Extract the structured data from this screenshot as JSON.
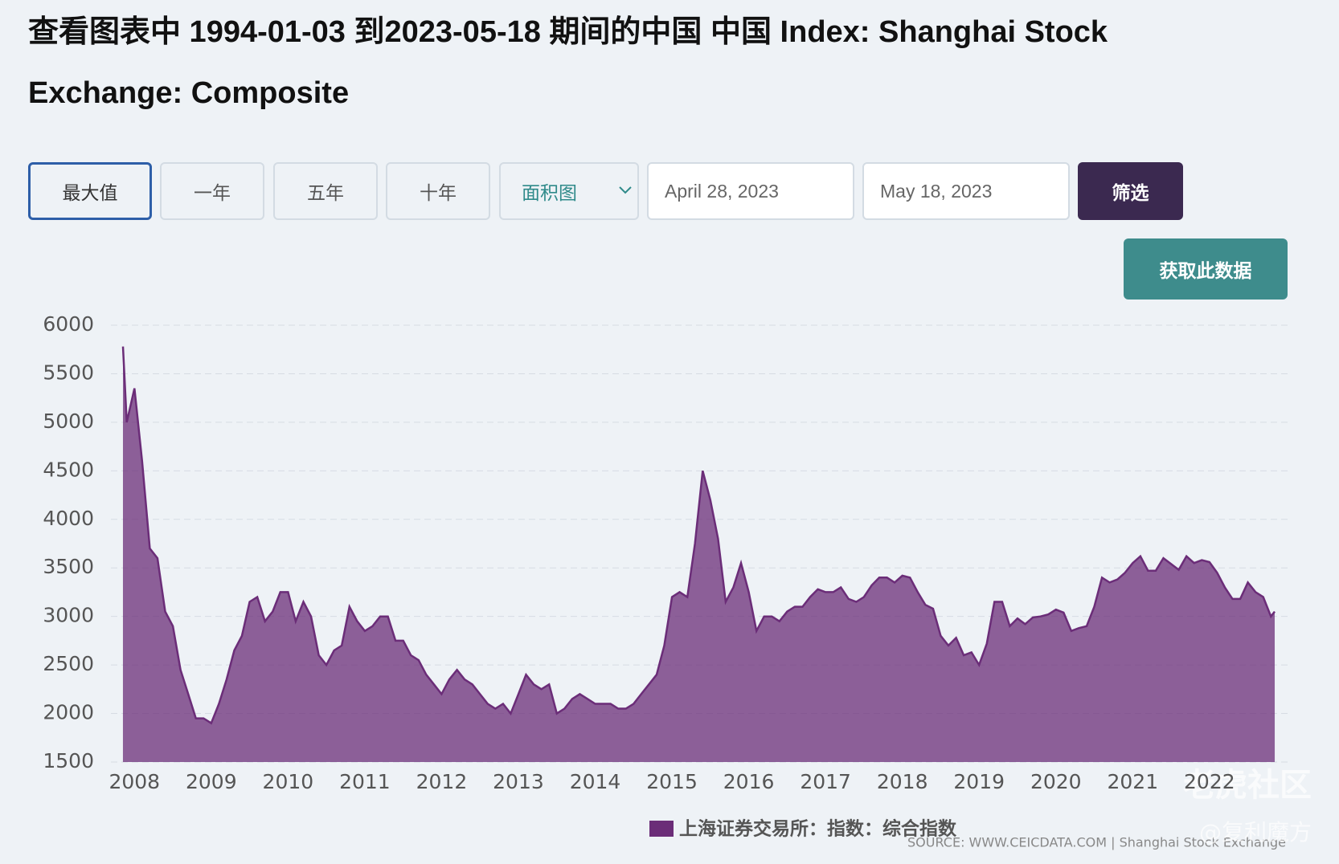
{
  "header": {
    "title": "查看图表中 1994-01-03 到2023-05-18 期间的中国 中国 Index: Shanghai Stock Exchange: Composite"
  },
  "controls": {
    "ranges": [
      "最大值",
      "一年",
      "五年",
      "十年"
    ],
    "chart_type": "面积图",
    "date_from": "April 28, 2023",
    "date_to": "May 18, 2023",
    "filter": "筛选",
    "download": "获取此数据"
  },
  "chart_data": {
    "type": "area",
    "x": [
      2007.85,
      2007.9,
      2008,
      2008.1,
      2008.2,
      2008.3,
      2008.4,
      2008.5,
      2008.6,
      2008.7,
      2008.8,
      2008.9,
      2009,
      2009.1,
      2009.2,
      2009.3,
      2009.4,
      2009.5,
      2009.6,
      2009.7,
      2009.8,
      2009.9,
      2010,
      2010.1,
      2010.2,
      2010.3,
      2010.4,
      2010.5,
      2010.6,
      2010.7,
      2010.8,
      2010.9,
      2011,
      2011.1,
      2011.2,
      2011.3,
      2011.4,
      2011.5,
      2011.6,
      2011.7,
      2011.8,
      2011.9,
      2012,
      2012.1,
      2012.2,
      2012.3,
      2012.4,
      2012.5,
      2012.6,
      2012.7,
      2012.8,
      2012.9,
      2013,
      2013.1,
      2013.2,
      2013.3,
      2013.4,
      2013.5,
      2013.6,
      2013.7,
      2013.8,
      2013.9,
      2014,
      2014.1,
      2014.2,
      2014.3,
      2014.4,
      2014.5,
      2014.6,
      2014.7,
      2014.8,
      2014.9,
      2015,
      2015.1,
      2015.2,
      2015.3,
      2015.4,
      2015.5,
      2015.6,
      2015.7,
      2015.8,
      2015.9,
      2016,
      2016.1,
      2016.2,
      2016.3,
      2016.4,
      2016.5,
      2016.6,
      2016.7,
      2016.8,
      2016.9,
      2017,
      2017.1,
      2017.2,
      2017.3,
      2017.4,
      2017.5,
      2017.6,
      2017.7,
      2017.8,
      2017.9,
      2018,
      2018.1,
      2018.2,
      2018.3,
      2018.4,
      2018.5,
      2018.6,
      2018.7,
      2018.8,
      2018.9,
      2019,
      2019.1,
      2019.2,
      2019.3,
      2019.4,
      2019.5,
      2019.6,
      2019.7,
      2019.8,
      2019.9,
      2020,
      2020.1,
      2020.2,
      2020.3,
      2020.4,
      2020.5,
      2020.6,
      2020.7,
      2020.8,
      2020.9,
      2021,
      2021.1,
      2021.2,
      2021.3,
      2021.4,
      2021.5,
      2021.6,
      2021.7,
      2021.8,
      2021.9,
      2022,
      2022.1,
      2022.2,
      2022.3,
      2022.4,
      2022.5,
      2022.6,
      2022.7,
      2022.8,
      2022.85
    ],
    "series": [
      {
        "name": "上海证券交易所：指数：综合指数",
        "color": "#6b2d78",
        "values": [
          5780,
          5000,
          5350,
          4600,
          3700,
          3600,
          3050,
          2900,
          2450,
          2200,
          1950,
          1950,
          1900,
          2100,
          2350,
          2650,
          2800,
          3150,
          3200,
          2950,
          3050,
          3250,
          3250,
          2950,
          3150,
          3000,
          2600,
          2500,
          2650,
          2700,
          3100,
          2950,
          2850,
          2900,
          3000,
          3000,
          2750,
          2750,
          2600,
          2550,
          2400,
          2300,
          2200,
          2350,
          2450,
          2350,
          2300,
          2200,
          2100,
          2050,
          2100,
          2000,
          2200,
          2400,
          2300,
          2250,
          2300,
          2000,
          2050,
          2150,
          2200,
          2150,
          2100,
          2100,
          2100,
          2050,
          2050,
          2100,
          2200,
          2300,
          2400,
          2700,
          3200,
          3250,
          3200,
          3750,
          4500,
          4200,
          3800,
          3150,
          3300,
          3550,
          3250,
          2850,
          3000,
          3000,
          2950,
          3050,
          3100,
          3100,
          3200,
          3280,
          3250,
          3250,
          3300,
          3180,
          3150,
          3200,
          3320,
          3400,
          3400,
          3350,
          3420,
          3400,
          3250,
          3120,
          3080,
          2800,
          2700,
          2780,
          2600,
          2630,
          2500,
          2720,
          3150,
          3150,
          2900,
          2980,
          2920,
          2990,
          3000,
          3020,
          3070,
          3040,
          2850,
          2880,
          2900,
          3100,
          3400,
          3350,
          3380,
          3450,
          3550,
          3620,
          3470,
          3470,
          3600,
          3540,
          3480,
          3620,
          3550,
          3580,
          3560,
          3450,
          3300,
          3180,
          3180,
          3350,
          3250,
          3200,
          3000,
          3050
        ]
      }
    ],
    "xlim": [
      2007.84,
      2022.86
    ],
    "xticks": [
      2008,
      2009,
      2010,
      2011,
      2012,
      2013,
      2014,
      2015,
      2016,
      2017,
      2018,
      2019,
      2020,
      2021,
      2022
    ],
    "ylim": [
      1500,
      6000
    ],
    "yticks": [
      1500,
      2000,
      2500,
      3000,
      3500,
      4000,
      4500,
      5000,
      5500,
      6000
    ],
    "grid": true,
    "source": "SOURCE: WWW.CEICDATA.COM | Shanghai Stock Exchange"
  },
  "watermark": {
    "logo": "老虎社区",
    "user": "@复利魔方"
  }
}
